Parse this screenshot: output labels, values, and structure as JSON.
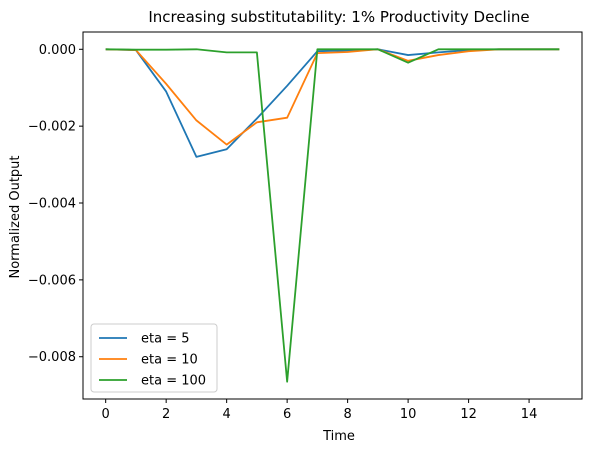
{
  "chart_data": {
    "type": "line",
    "title": "Increasing substitutability: 1% Productivity Decline",
    "xlabel": "Time",
    "ylabel": "Normalized Output",
    "xlim": [
      -0.75,
      15.75
    ],
    "ylim": [
      -0.0091,
      0.00045
    ],
    "xticks": [
      0,
      2,
      4,
      6,
      8,
      10,
      12,
      14
    ],
    "xtick_labels": [
      "0",
      "2",
      "4",
      "6",
      "8",
      "10",
      "12",
      "14"
    ],
    "yticks": [
      0.0,
      -0.002,
      -0.004,
      -0.006,
      -0.008
    ],
    "ytick_labels": [
      "0.000",
      "−0.002",
      "−0.004",
      "−0.006",
      "−0.008"
    ],
    "grid": false,
    "legend_position": "lower-left",
    "x": [
      0,
      1,
      2,
      3,
      4,
      5,
      6,
      7,
      8,
      9,
      10,
      11,
      12,
      13,
      14,
      15
    ],
    "series": [
      {
        "name": "eta = 5",
        "color": "#1f77b4",
        "values": [
          0.0,
          -2e-05,
          -0.0011,
          -0.0028,
          -0.0026,
          -0.0018,
          -0.00095,
          -5e-05,
          -3e-05,
          0.0,
          -0.00015,
          -8e-05,
          -2e-05,
          0.0,
          0.0,
          0.0
        ]
      },
      {
        "name": "eta = 10",
        "color": "#ff7f0e",
        "values": [
          0.0,
          -2e-05,
          -0.0009,
          -0.00185,
          -0.00248,
          -0.0019,
          -0.00178,
          -0.0001,
          -7e-05,
          0.0,
          -0.0003,
          -0.00015,
          -5e-05,
          0.0,
          0.0,
          0.0
        ]
      },
      {
        "name": "eta = 100",
        "color": "#2ca02c",
        "values": [
          0.0,
          -1e-05,
          -1e-05,
          0.0,
          -8e-05,
          -8e-05,
          -0.00865,
          0.0,
          0.0,
          0.0,
          -0.00035,
          0.0,
          0.0,
          0.0,
          0.0,
          0.0
        ]
      }
    ]
  }
}
